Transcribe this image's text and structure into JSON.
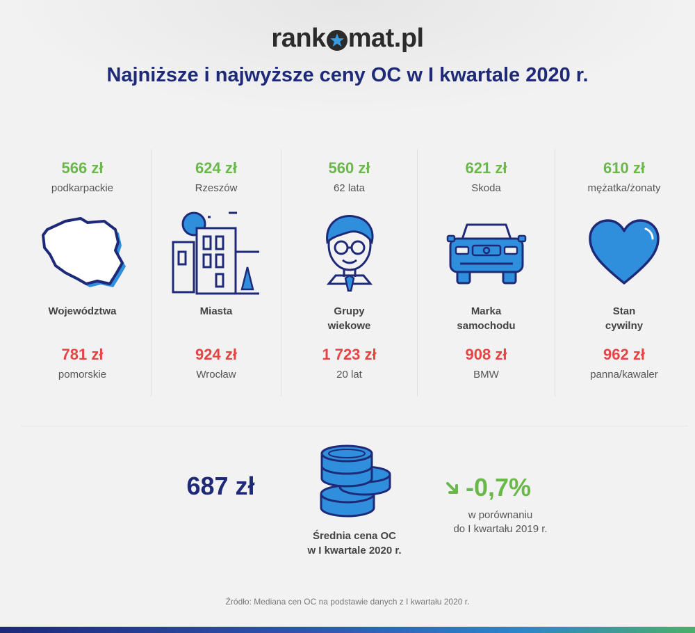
{
  "brand": {
    "logo_pre": "rank",
    "logo_post": "mat.pl"
  },
  "title": "Najniższe i najwyższe ceny OC w I kwartale 2020 r.",
  "colors": {
    "navy": "#1e2a78",
    "green": "#6ab84a",
    "red": "#e94343",
    "blue": "#2f8fdd"
  },
  "categories": [
    {
      "low_price": "566 zł",
      "low_label": "podkarpackie",
      "icon": "poland-map-icon",
      "name_1": "Województwa",
      "name_2": "",
      "high_price": "781 zł",
      "high_label": "pomorskie"
    },
    {
      "low_price": "624 zł",
      "low_label": "Rzeszów",
      "icon": "city-buildings-icon",
      "name_1": "Miasta",
      "name_2": "",
      "high_price": "924 zł",
      "high_label": "Wrocław"
    },
    {
      "low_price": "560 zł",
      "low_label": "62 lata",
      "icon": "person-glasses-icon",
      "name_1": "Grupy",
      "name_2": "wiekowe",
      "high_price": "1 723 zł",
      "high_label": "20 lat"
    },
    {
      "low_price": "621 zł",
      "low_label": "Skoda",
      "icon": "car-front-icon",
      "name_1": "Marka",
      "name_2": "samochodu",
      "high_price": "908 zł",
      "high_label": "BMW"
    },
    {
      "low_price": "610 zł",
      "low_label": "mężatka/żonaty",
      "icon": "heart-icon",
      "name_1": "Stan",
      "name_2": "cywilny",
      "high_price": "962 zł",
      "high_label": "panna/kawaler"
    }
  ],
  "average": {
    "value": "687 zł",
    "label_1": "Średnia cena OC",
    "label_2": "w I kwartale 2020 r.",
    "change": "-0,7%",
    "change_icon": "arrow-down-right-icon",
    "change_desc_1": "w porównaniu",
    "change_desc_2": "do I kwartału 2019 r."
  },
  "source": "Źródło: Mediana cen OC na podstawie danych z I kwartału 2020 r."
}
